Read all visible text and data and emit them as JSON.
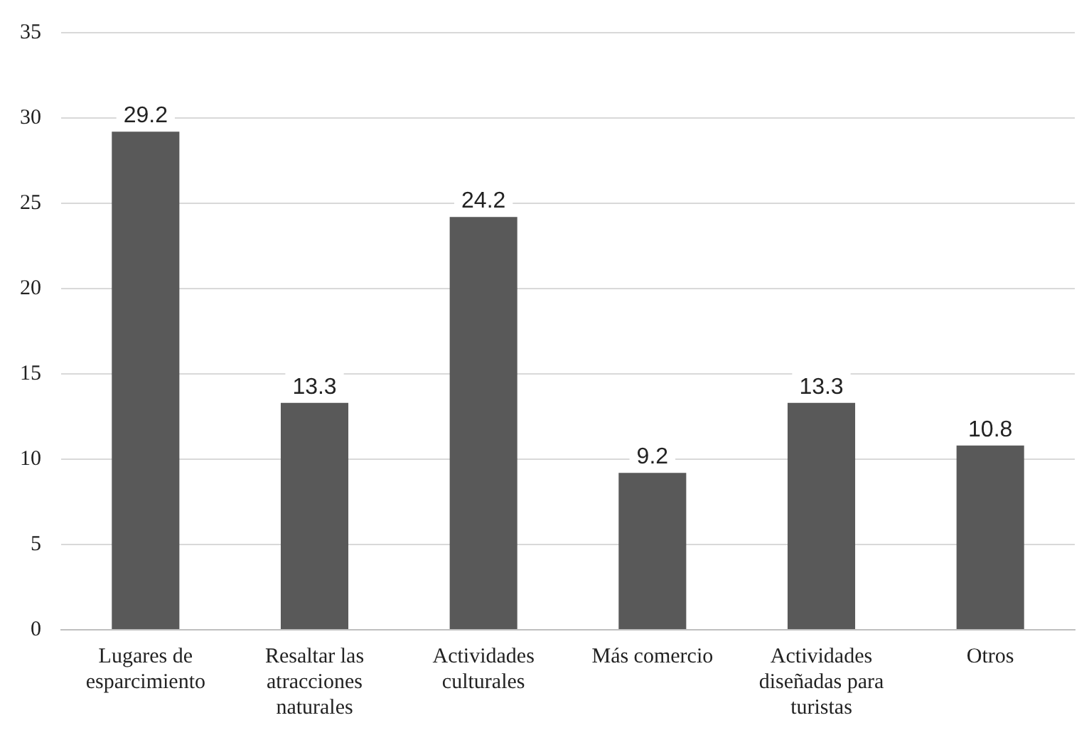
{
  "chart_data": {
    "type": "bar",
    "categories": [
      "Lugares de esparcimiento",
      "Resaltar las atracciones naturales",
      "Actividades culturales",
      "Más comercio",
      "Actividades diseñadas para turistas",
      "Otros"
    ],
    "values": [
      29.2,
      13.3,
      24.2,
      9.2,
      13.3,
      10.8
    ],
    "color": "#595959",
    "ylim": [
      0,
      35
    ],
    "yticks": [
      0,
      5,
      10,
      15,
      20,
      25,
      30,
      35
    ],
    "grid": "y",
    "legend": false,
    "data_labels": true
  }
}
